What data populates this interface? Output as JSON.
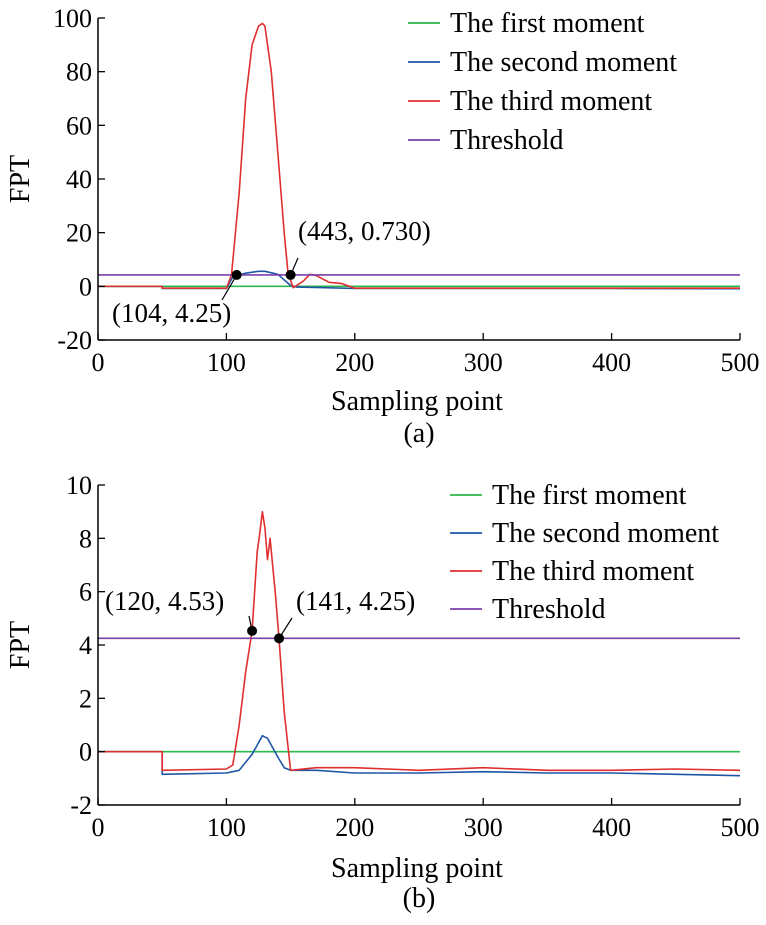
{
  "colors": {
    "first": "#2db84a",
    "second": "#1f56a6",
    "third": "#e02f2f",
    "threshold": "#7b3fa8",
    "axis": "#000000"
  },
  "chart_data": [
    {
      "type": "line",
      "caption": "(a)",
      "xlabel": "Sampling point",
      "ylabel": "FPT",
      "xlim": [
        0,
        500
      ],
      "ylim": [
        -20,
        100
      ],
      "xticks": [
        0,
        100,
        200,
        300,
        400,
        500
      ],
      "yticks": [
        -20,
        0,
        20,
        40,
        60,
        80,
        100
      ],
      "grid": false,
      "legend": "top-right",
      "series": [
        {
          "name": "The first moment",
          "color_key": "first",
          "x": [
            0,
            50,
            100,
            150,
            200,
            300,
            400,
            500
          ],
          "y": [
            0,
            0,
            0,
            0,
            0,
            0,
            0,
            0
          ]
        },
        {
          "name": "The second moment",
          "color_key": "second",
          "x": [
            0,
            50,
            50,
            100,
            105,
            115,
            125,
            130,
            140,
            150,
            155,
            170,
            200,
            250,
            300,
            400,
            500
          ],
          "y": [
            0,
            0,
            -0.8,
            -0.8,
            3.6,
            4.9,
            5.6,
            5.6,
            4.5,
            0.3,
            -0.3,
            -0.4,
            -0.8,
            -0.8,
            -0.8,
            -0.8,
            -0.9
          ]
        },
        {
          "name": "The third moment",
          "color_key": "third",
          "x": [
            0,
            50,
            50,
            100,
            104,
            110,
            115,
            120,
            125,
            128,
            130,
            135,
            140,
            145,
            148,
            152,
            160,
            165,
            170,
            180,
            190,
            200,
            250,
            300,
            400,
            500
          ],
          "y": [
            0,
            0,
            -0.7,
            -0.7,
            4.25,
            35,
            70,
            90,
            97,
            98,
            97,
            80,
            50,
            20,
            5,
            -0.5,
            2,
            4.5,
            4,
            1.5,
            1,
            -0.7,
            -0.7,
            -0.7,
            -0.7,
            -0.7
          ]
        },
        {
          "name": "Threshold",
          "color_key": "threshold",
          "x": [
            0,
            500
          ],
          "y": [
            4.25,
            4.25
          ]
        }
      ],
      "annotations": [
        {
          "text": "(104, 4.25)",
          "x": 108,
          "y": 4.25
        },
        {
          "text": "(443, 0.730)",
          "x": 150,
          "y": 4.25
        }
      ]
    },
    {
      "type": "line",
      "caption": "(b)",
      "xlabel": "Sampling point",
      "ylabel": "FPT",
      "xlim": [
        0,
        500
      ],
      "ylim": [
        -2,
        10
      ],
      "xticks": [
        0,
        100,
        200,
        300,
        400,
        500
      ],
      "yticks": [
        -2,
        0,
        2,
        4,
        6,
        8,
        10
      ],
      "grid": false,
      "legend": "top-right",
      "series": [
        {
          "name": "The first moment",
          "color_key": "first",
          "x": [
            0,
            50,
            100,
            200,
            300,
            400,
            500
          ],
          "y": [
            0,
            0,
            0,
            0,
            0,
            0,
            0
          ]
        },
        {
          "name": "The second moment",
          "color_key": "second",
          "x": [
            0,
            50,
            50,
            100,
            110,
            120,
            128,
            132,
            140,
            145,
            150,
            170,
            200,
            250,
            300,
            350,
            400,
            450,
            500
          ],
          "y": [
            0,
            0,
            -0.85,
            -0.8,
            -0.7,
            -0.1,
            0.6,
            0.5,
            -0.2,
            -0.6,
            -0.7,
            -0.7,
            -0.8,
            -0.8,
            -0.75,
            -0.8,
            -0.8,
            -0.85,
            -0.9
          ]
        },
        {
          "name": "The third moment",
          "color_key": "third",
          "x": [
            0,
            50,
            50,
            100,
            105,
            110,
            115,
            120,
            124,
            126,
            128,
            130,
            132,
            134,
            136,
            138,
            141,
            145,
            150,
            170,
            200,
            250,
            300,
            350,
            400,
            450,
            500
          ],
          "y": [
            0,
            0,
            -0.7,
            -0.65,
            -0.5,
            1.0,
            3.0,
            4.53,
            7.5,
            8.2,
            9.0,
            8.4,
            7.2,
            8.0,
            7.0,
            6.0,
            4.25,
            1.5,
            -0.7,
            -0.6,
            -0.6,
            -0.7,
            -0.6,
            -0.7,
            -0.7,
            -0.65,
            -0.7
          ]
        },
        {
          "name": "Threshold",
          "color_key": "threshold",
          "x": [
            0,
            500
          ],
          "y": [
            4.25,
            4.25
          ]
        }
      ],
      "annotations": [
        {
          "text": "(120, 4.53)",
          "x": 120,
          "y": 4.53
        },
        {
          "text": "(141, 4.25)",
          "x": 141,
          "y": 4.25
        }
      ]
    }
  ]
}
